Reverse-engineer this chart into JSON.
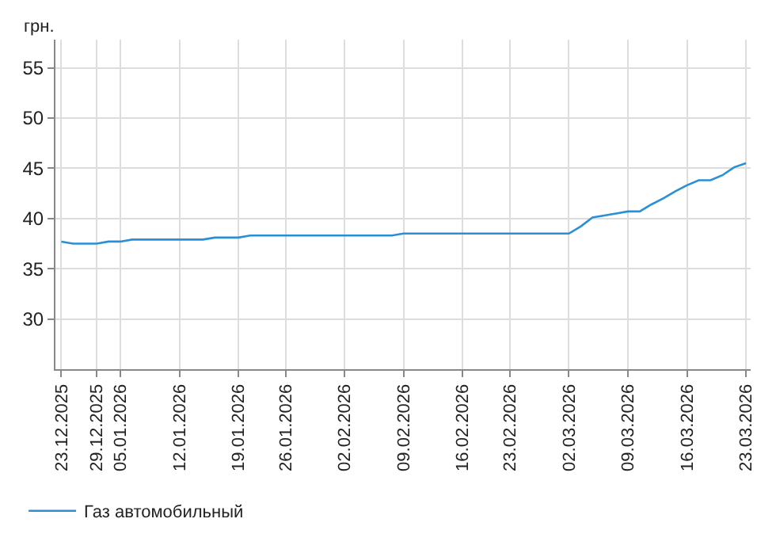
{
  "chart_data": {
    "type": "line",
    "ylabel": "грн.",
    "categories": [
      "23.12.2025",
      null,
      null,
      "29.12.2025",
      null,
      "05.01.2026",
      null,
      null,
      null,
      null,
      "12.01.2026",
      null,
      null,
      null,
      null,
      "19.01.2026",
      null,
      null,
      null,
      "26.01.2026",
      null,
      null,
      null,
      null,
      "02.02.2026",
      null,
      null,
      null,
      null,
      "09.02.2026",
      null,
      null,
      null,
      null,
      "16.02.2026",
      null,
      null,
      null,
      "23.02.2026",
      null,
      null,
      null,
      null,
      "02.03.2026",
      null,
      null,
      null,
      null,
      "09.03.2026",
      null,
      null,
      null,
      null,
      "16.03.2026",
      null,
      null,
      null,
      null,
      "23.03.2026"
    ],
    "series": [
      {
        "name": "Газ автомобильный",
        "color": "#2a8fd4",
        "values": [
          37.7,
          37.5,
          37.5,
          37.5,
          37.7,
          37.7,
          37.9,
          37.9,
          37.9,
          37.9,
          37.9,
          37.9,
          37.9,
          38.1,
          38.1,
          38.1,
          38.3,
          38.3,
          38.3,
          38.3,
          38.3,
          38.3,
          38.3,
          38.3,
          38.3,
          38.3,
          38.3,
          38.3,
          38.3,
          38.5,
          38.5,
          38.5,
          38.5,
          38.5,
          38.5,
          38.5,
          38.5,
          38.5,
          38.5,
          38.5,
          38.5,
          38.5,
          38.5,
          38.5,
          39.2,
          40.1,
          40.3,
          40.5,
          40.7,
          40.7,
          41.4,
          42.0,
          42.7,
          43.3,
          43.8,
          43.8,
          44.3,
          45.1,
          45.5
        ]
      }
    ],
    "ylim": [
      25,
      57.8
    ],
    "yticks": [
      30,
      35,
      40,
      45,
      50,
      55
    ],
    "grid": true,
    "legend": "bottom left",
    "marker": "none",
    "line_style": "solid"
  }
}
